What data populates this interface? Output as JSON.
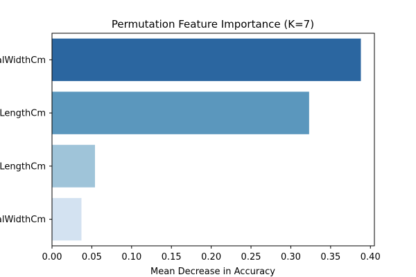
{
  "chart_data": {
    "type": "bar",
    "orientation": "horizontal",
    "title": "Permutation Feature Importance (K=7)",
    "xlabel": "Mean Decrease in Accuracy",
    "ylabel": "",
    "categories": [
      "PetalWidthCm",
      "PetalLengthCm",
      "SepalLengthCm",
      "SepalWidthCm"
    ],
    "values": [
      0.388,
      0.323,
      0.054,
      0.037
    ],
    "colors": [
      "#2b66a0",
      "#5b97bd",
      "#9fc4d9",
      "#d3e2f1"
    ],
    "xlim": [
      0.0,
      0.405
    ],
    "xticks": [
      "0.00",
      "0.05",
      "0.10",
      "0.15",
      "0.20",
      "0.25",
      "0.30",
      "0.35",
      "0.40"
    ],
    "grid": false,
    "legend": "none"
  }
}
